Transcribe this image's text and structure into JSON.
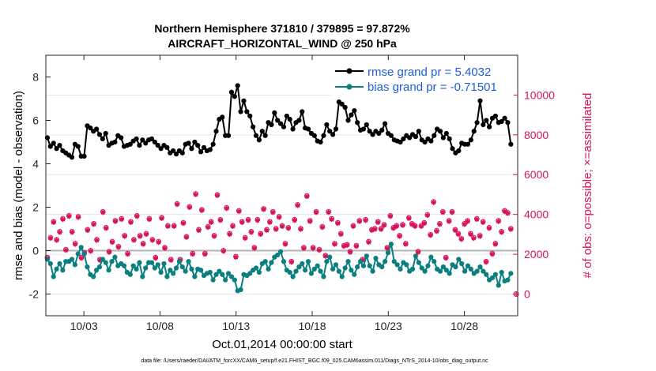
{
  "chart_data": {
    "type": "line",
    "title_line1": "Northern Hemisphere 371810 / 379895 = 97.872%",
    "title_line2": "AIRCRAFT_HORIZONTAL_WIND @ 250 hPa",
    "xlabel": "Oct.01,2014 00:00:00 start",
    "ylabel_left": "rmse and bias (model - observation)",
    "ylabel_right": "# of obs: o=possible; ×=assimilated",
    "footnote": "data file: /Users/raeder/DAI/ATM_forcXX/CAM6_setup/f.e21.FHIST_BGC.f09_025.CAM6assim.011/Diags_NTrS_2014-10/obs_diag_output.nc",
    "x_range": [
      0.5,
      31.5
    ],
    "x_ticks": [
      3,
      8,
      13,
      18,
      23,
      28
    ],
    "x_tick_labels": [
      "10/03",
      "10/08",
      "10/13",
      "10/18",
      "10/23",
      "10/28"
    ],
    "ylim_left": [
      -3,
      9
    ],
    "left_ticks": [
      -2,
      0,
      2,
      4,
      6,
      8
    ],
    "left_tick_labels": [
      "-2",
      "0",
      "2",
      "4",
      "6",
      "8"
    ],
    "ylim_right": [
      -1091,
      12000
    ],
    "right_ticks": [
      0,
      2000,
      4000,
      6000,
      8000,
      10000
    ],
    "right_tick_labels": [
      "0",
      "2000",
      "4000",
      "6000",
      "8000",
      "10000"
    ],
    "zero_line": 0,
    "colors": {
      "rmse": "#000000",
      "bias": "#0a7f7f",
      "obs": "#d6135c",
      "legend_text": "#1f5fd6",
      "zero_line": "#b3b3b3",
      "grid": "#e6e6e6"
    },
    "series": [
      {
        "name": "rmse grand pr = 5.4032",
        "axis": "left",
        "marker": "circle",
        "values": [
          5.2,
          4.8,
          4.95,
          4.7,
          4.85,
          4.6,
          4.5,
          4.4,
          4.3,
          4.9,
          4.8,
          4.35,
          4.35,
          5.75,
          5.65,
          5.5,
          5.6,
          5.35,
          5.15,
          5.4,
          4.85,
          4.95,
          5.0,
          5.3,
          5.2,
          4.8,
          4.85,
          4.9,
          5.05,
          5.15,
          4.85,
          5.1,
          4.95,
          5.1,
          5.15,
          5.0,
          4.85,
          4.7,
          4.85,
          4.75,
          4.5,
          4.6,
          4.45,
          4.6,
          4.5,
          4.9,
          4.95,
          4.7,
          5.0,
          4.85,
          4.55,
          4.75,
          4.6,
          4.65,
          4.9,
          5.5,
          6.05,
          6.15,
          5.3,
          5.3,
          7.3,
          7.1,
          7.6,
          6.4,
          6.9,
          6.4,
          6.2,
          5.7,
          5.3,
          5.1,
          5.5,
          5.3,
          5.9,
          5.8,
          6.35,
          6.0,
          5.85,
          5.7,
          6.2,
          6.05,
          5.6,
          5.9,
          6.0,
          6.4,
          5.65,
          5.6,
          5.4,
          5.3,
          5.05,
          5.0,
          5.3,
          5.8,
          5.5,
          5.35,
          5.6,
          6.85,
          6.75,
          6.6,
          6.0,
          6.25,
          6.45,
          5.9,
          5.55,
          5.6,
          5.8,
          5.5,
          5.35,
          5.5,
          5.4,
          5.55,
          5.85,
          5.4,
          5.3,
          5.1,
          5.05,
          5.0,
          5.15,
          5.3,
          5.2,
          5.35,
          5.25,
          5.5,
          5.1,
          5.0,
          5.15,
          5.05,
          5.3,
          5.6,
          5.5,
          5.2,
          5.4,
          5.15,
          4.7,
          4.5,
          4.6,
          4.95,
          4.9,
          4.9,
          5.1,
          5.5,
          5.9,
          6.9,
          5.8,
          6.0,
          5.7,
          6.1,
          6.2,
          5.9,
          5.95,
          6.1,
          5.9,
          4.9
        ],
        "grand": 5.4032
      },
      {
        "name": "bias grand pr = -0.71501",
        "axis": "left",
        "marker": "circle",
        "values": [
          -0.4,
          -0.6,
          -1.2,
          -0.85,
          -0.6,
          -0.9,
          -0.5,
          -0.5,
          -0.4,
          -0.65,
          -0.15,
          0.15,
          -0.15,
          -0.75,
          -1.1,
          -1.2,
          -0.9,
          -0.75,
          -0.4,
          -0.55,
          -0.9,
          -0.5,
          -0.3,
          -0.7,
          -0.6,
          -0.7,
          -1.0,
          -1.1,
          -0.7,
          -0.85,
          -0.55,
          -1.2,
          -0.8,
          -0.55,
          -0.55,
          -0.8,
          -0.65,
          -1.0,
          -0.6,
          -1.2,
          -0.9,
          -1.05,
          -0.8,
          -0.5,
          -0.75,
          -0.95,
          -0.5,
          -0.85,
          -1.2,
          -0.85,
          -0.9,
          -1.15,
          -1.05,
          -1.0,
          -1.35,
          -1.1,
          -0.95,
          -1.1,
          -1.35,
          -1.05,
          -1.2,
          -1.35,
          -1.85,
          -1.8,
          -1.1,
          -1.15,
          -1.05,
          -0.9,
          -0.8,
          -1.0,
          -0.6,
          -0.5,
          -0.85,
          -0.55,
          -0.3,
          -0.2,
          -0.05,
          -0.5,
          -0.9,
          -1.0,
          -1.2,
          -0.95,
          -0.75,
          -0.6,
          -0.9,
          -0.5,
          -1.05,
          -0.85,
          -0.7,
          -0.95,
          -1.2,
          -0.5,
          -0.3,
          -0.85,
          -0.65,
          -0.95,
          -1.2,
          -0.8,
          -0.5,
          -0.9,
          -1.1,
          -0.75,
          -0.5,
          -0.7,
          -0.25,
          -0.7,
          -0.95,
          -0.35,
          -0.65,
          -0.75,
          -0.5,
          -0.1,
          0.3,
          -0.5,
          -0.65,
          -0.85,
          -0.55,
          -0.65,
          -0.95,
          -0.85,
          -0.25,
          -0.55,
          -0.8,
          -0.95,
          -0.7,
          -0.3,
          -0.5,
          -0.85,
          -0.95,
          -0.75,
          -0.9,
          -1.05,
          -0.65,
          -0.75,
          -0.4,
          -0.6,
          -0.95,
          -0.7,
          -0.85,
          -1.05,
          -0.95,
          -0.75,
          -0.95,
          -1.1,
          -1.35,
          -1.25,
          -1.1,
          -1.6,
          -1.0,
          -1.4,
          -1.35,
          -1.05
        ]
      },
      {
        "name": "obs assimilated",
        "axis": "right",
        "marker": "star",
        "values": [
          1800,
          2800,
          3600,
          2700,
          3100,
          3750,
          2200,
          3900,
          3100,
          2500,
          3850,
          1800,
          2050,
          3200,
          2150,
          3500,
          2700,
          1700,
          4100,
          3300,
          2100,
          2600,
          3650,
          2350,
          3750,
          2900,
          2000,
          3600,
          2700,
          3900,
          2900,
          2500,
          3000,
          3750,
          2700,
          1800,
          2600,
          3800,
          2300,
          3400,
          1700,
          3400,
          4500,
          1700,
          3550,
          2850,
          4350,
          2000,
          5000,
          3200,
          4200,
          2000,
          3350,
          3600,
          2900,
          4950,
          3700,
          2150,
          4300,
          3000,
          3400,
          1850,
          4150,
          3600,
          2800,
          3700,
          3100,
          2300,
          3700,
          3000,
          4250,
          3200,
          3600,
          4100,
          3250,
          3850,
          3400,
          2500,
          3300,
          1600,
          3700,
          4450,
          3250,
          2300,
          4900,
          3650,
          2300,
          4100,
          2200,
          3350,
          1900,
          4100,
          3750,
          2500,
          3550,
          3000,
          2400,
          2450,
          2100,
          3400,
          2400,
          3650,
          1700,
          3700,
          2600,
          3200,
          3250,
          3600,
          3250,
          3450,
          2300,
          3900,
          3300,
          3400,
          2900,
          3450,
          2500,
          3800,
          3500,
          3400,
          2100,
          3400,
          3550,
          3950,
          2950,
          4600,
          3150,
          3500,
          4100,
          1800,
          3650,
          4100,
          3200,
          3000,
          2750,
          3500,
          3650,
          3000,
          2800,
          3750,
          2900,
          3600,
          1600,
          3300,
          2000,
          2500,
          3650,
          3100,
          4150,
          4050,
          3250
        ]
      },
      {
        "name": "obs possible",
        "axis": "right",
        "marker": "circle",
        "values": [
          1800,
          2800,
          3600,
          2700,
          3100,
          3750,
          2200,
          3900,
          3100,
          2500,
          3850,
          1800,
          2050,
          3200,
          2150,
          3500,
          2700,
          1700,
          4100,
          3300,
          2100,
          2600,
          3650,
          2350,
          3750,
          2900,
          2000,
          3600,
          2700,
          3900,
          2900,
          2500,
          3000,
          3750,
          2700,
          1800,
          2600,
          3800,
          2300,
          3400,
          1700,
          3400,
          4500,
          1700,
          3550,
          2850,
          4350,
          2000,
          5000,
          3200,
          4200,
          2000,
          3350,
          3600,
          2900,
          4950,
          3700,
          2150,
          4300,
          3000,
          3400,
          1850,
          4150,
          3600,
          2800,
          3700,
          3100,
          2300,
          3700,
          3000,
          4250,
          3200,
          3600,
          4100,
          3250,
          3850,
          3400,
          2500,
          3300,
          1600,
          3700,
          4450,
          3250,
          2300,
          4900,
          3650,
          2300,
          4100,
          2200,
          3350,
          1900,
          4100,
          3750,
          2500,
          3550,
          3000,
          2400,
          2450,
          2100,
          3400,
          2400,
          3650,
          1700,
          3700,
          2600,
          3200,
          3250,
          3600,
          3250,
          3450,
          2300,
          3900,
          3300,
          3400,
          2900,
          3450,
          2500,
          3800,
          3500,
          3400,
          2100,
          3400,
          3550,
          3950,
          2950,
          4600,
          3150,
          3500,
          4100,
          1800,
          3650,
          4100,
          3200,
          3000,
          2750,
          3500,
          3650,
          3000,
          2800,
          3750,
          2900,
          3600,
          1600,
          3300,
          2000,
          2500,
          3650,
          3100,
          4150,
          4050,
          3250
        ]
      }
    ],
    "extra_points": [
      {
        "name": "obs at zero",
        "axis": "right",
        "x": 31.4,
        "value": 0
      }
    ],
    "legend": {
      "placement": "top-right",
      "entries": [
        "rmse grand pr = 5.4032",
        "bias grand pr = -0.71501"
      ]
    },
    "grid": false
  }
}
